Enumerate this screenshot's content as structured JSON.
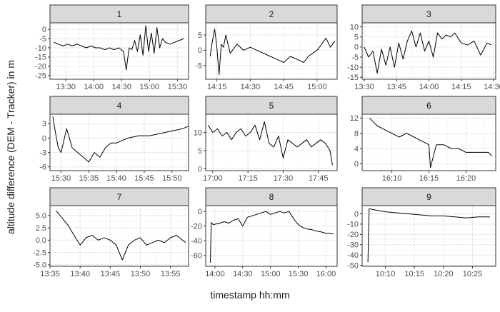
{
  "chart_data": {
    "type": "line",
    "layout": "facet grid 3x3",
    "xlabel": "timestamp hh:mm",
    "ylabel": "altitude difference (DEM - Tracker) in m",
    "grid": true,
    "legend": "none",
    "colors": {
      "line": "#000000",
      "strip": "#d9d9d9",
      "panel_border": "#333333",
      "grid_major": "#ebebeb",
      "grid_minor": "#f5f5f5"
    },
    "panels": [
      {
        "label": "1",
        "xlim": [
          "13:13",
          "15:42"
        ],
        "ylim": [
          -27,
          3.5
        ],
        "xticks": [
          "13:30",
          "14:00",
          "14:30",
          "15:00",
          "15:30"
        ],
        "yticks": [
          0,
          -5,
          -10,
          -15,
          -20,
          -25
        ],
        "x": [
          "13:17",
          "13:22",
          "13:27",
          "13:32",
          "13:37",
          "13:42",
          "13:47",
          "13:52",
          "13:57",
          "14:02",
          "14:07",
          "14:12",
          "14:17",
          "14:22",
          "14:27",
          "14:32",
          "14:35",
          "14:38",
          "14:41",
          "14:44",
          "14:47",
          "14:50",
          "14:53",
          "14:56",
          "14:59",
          "15:02",
          "15:05",
          "15:08",
          "15:11",
          "15:14",
          "15:17",
          "15:22",
          "15:27",
          "15:32",
          "15:37"
        ],
        "y": [
          -7,
          -8,
          -9,
          -8,
          -9,
          -8,
          -9,
          -10,
          -9,
          -10,
          -10,
          -11,
          -10,
          -11,
          -10,
          -12,
          -22,
          -10,
          -11,
          -6,
          -12,
          -3,
          -14,
          2,
          -12,
          -2,
          -13,
          1,
          -10,
          -5,
          -7,
          -8,
          -7,
          -6,
          -5
        ]
      },
      {
        "label": "2",
        "xlim": [
          "14:10",
          "15:09"
        ],
        "ylim": [
          -9.5,
          9
        ],
        "xticks": [
          "14:15",
          "14:30",
          "14:45",
          "15:00"
        ],
        "yticks": [
          5,
          0,
          -5
        ],
        "x": [
          "14:12",
          "14:13",
          "14:14",
          "14:15",
          "14:16",
          "14:17",
          "14:18",
          "14:19",
          "14:21",
          "14:24",
          "14:27",
          "14:30",
          "14:33",
          "14:36",
          "14:39",
          "14:42",
          "14:45",
          "14:48",
          "14:51",
          "14:54",
          "14:56",
          "14:58",
          "15:00",
          "15:02",
          "15:04",
          "15:06",
          "15:08"
        ],
        "y": [
          -2,
          3,
          7,
          1,
          -8,
          2,
          1,
          5,
          -1,
          2,
          0,
          1,
          0,
          -1,
          -2,
          -3,
          -4,
          -2,
          -3,
          -4,
          -2,
          -1,
          0,
          2,
          4,
          1,
          3
        ]
      },
      {
        "label": "3",
        "xlim": [
          "13:29",
          "14:31"
        ],
        "ylim": [
          -16,
          12
        ],
        "xticks": [
          "13:30",
          "13:45",
          "14:00",
          "14:15",
          "14:30"
        ],
        "yticks": [
          10,
          5,
          0,
          -5,
          -10,
          -15
        ],
        "x": [
          "13:30",
          "13:32",
          "13:34",
          "13:36",
          "13:38",
          "13:40",
          "13:42",
          "13:44",
          "13:46",
          "13:48",
          "13:50",
          "13:52",
          "13:54",
          "13:56",
          "13:58",
          "14:00",
          "14:02",
          "14:04",
          "14:06",
          "14:08",
          "14:10",
          "14:12",
          "14:15",
          "14:18",
          "14:21",
          "14:24",
          "14:27",
          "14:29"
        ],
        "y": [
          0,
          -5,
          -2,
          -13,
          -1,
          -9,
          0,
          -10,
          2,
          -6,
          3,
          8,
          0,
          7,
          -2,
          3,
          -5,
          7,
          4,
          6,
          5,
          7,
          2,
          1,
          3,
          -4,
          2,
          1
        ]
      },
      {
        "label": "4",
        "xlim": [
          "15:28",
          "15:53"
        ],
        "ylim": [
          -6.8,
          5
        ],
        "xticks": [
          "15:30",
          "15:35",
          "15:40",
          "15:45",
          "15:50"
        ],
        "yticks": [
          3,
          0,
          -3,
          -6
        ],
        "x": [
          "15:28.5",
          "15:29",
          "15:29.5",
          "15:30",
          "15:31",
          "15:32",
          "15:33",
          "15:34",
          "15:35",
          "15:36",
          "15:37",
          "15:38",
          "15:39",
          "15:40",
          "15:42",
          "15:44",
          "15:46",
          "15:48",
          "15:50",
          "15:52",
          "15:53"
        ],
        "y": [
          4.5,
          1,
          -2,
          -3,
          2,
          -2,
          -3,
          -4,
          -5,
          -3,
          -4,
          -2,
          -1,
          -1,
          0,
          0.5,
          0.5,
          1,
          1.5,
          2,
          2.5
        ]
      },
      {
        "label": "5",
        "xlim": [
          "16:57",
          "17:53"
        ],
        "ylim": [
          -0.5,
          15
        ],
        "xticks": [
          "17:00",
          "17:15",
          "17:30",
          "17:45"
        ],
        "yticks": [
          10,
          5,
          0
        ],
        "x": [
          "16:58",
          "17:00",
          "17:02",
          "17:04",
          "17:06",
          "17:08",
          "17:10",
          "17:12",
          "17:14",
          "17:16",
          "17:18",
          "17:20",
          "17:22",
          "17:24",
          "17:26",
          "17:28",
          "17:30",
          "17:32",
          "17:34",
          "17:36",
          "17:38",
          "17:40",
          "17:42",
          "17:44",
          "17:46",
          "17:48",
          "17:50",
          "17:51"
        ],
        "y": [
          12,
          10,
          11,
          9,
          10,
          8,
          10,
          11,
          9,
          10,
          12,
          8,
          13,
          7,
          6,
          9,
          3,
          8,
          7,
          6,
          7,
          8,
          6,
          7,
          8,
          7,
          5,
          1
        ]
      },
      {
        "label": "6",
        "xlim": [
          "16:06",
          "16:24"
        ],
        "ylim": [
          -1.8,
          13
        ],
        "xticks": [
          "16:10",
          "16:15",
          "16:20"
        ],
        "yticks": [
          12,
          8,
          4,
          0
        ],
        "x": [
          "16:07",
          "16:07.5",
          "16:08",
          "16:09",
          "16:10",
          "16:11",
          "16:12",
          "16:13",
          "16:14",
          "16:15",
          "16:15.2",
          "16:16",
          "16:17",
          "16:18",
          "16:19",
          "16:20",
          "16:21",
          "16:22",
          "16:23",
          "16:23.5"
        ],
        "y": [
          12,
          11,
          10,
          9,
          8,
          7,
          8,
          7,
          6,
          5,
          -1,
          5,
          5,
          4,
          4,
          3,
          3,
          3,
          3,
          2
        ]
      },
      {
        "label": "7",
        "xlim": [
          "13:35",
          "13:58"
        ],
        "ylim": [
          -5.3,
          7
        ],
        "xticks": [
          "13:35",
          "13:40",
          "13:45",
          "13:50",
          "13:55"
        ],
        "yticks": [
          5.0,
          2.5,
          0.0,
          -2.5,
          -5.0
        ],
        "x": [
          "13:36",
          "13:37",
          "13:38",
          "13:39",
          "13:40",
          "13:41",
          "13:42",
          "13:43",
          "13:44",
          "13:45",
          "13:46",
          "13:47",
          "13:48",
          "13:49",
          "13:50",
          "13:51",
          "13:52",
          "13:53",
          "13:54",
          "13:55",
          "13:56",
          "13:57",
          "13:57.5"
        ],
        "y": [
          6,
          4.5,
          3,
          1,
          -1,
          0.5,
          1,
          0,
          0.5,
          0,
          -1,
          -4,
          -1,
          0,
          0.5,
          -1,
          -0.5,
          0,
          -0.5,
          0.5,
          1,
          0,
          -0.5
        ]
      },
      {
        "label": "8",
        "xlim": [
          "13:50",
          "16:12"
        ],
        "ylim": [
          -75,
          8
        ],
        "xticks": [
          "14:00",
          "14:30",
          "15:00",
          "15:30",
          "16:00"
        ],
        "yticks": [
          0,
          -20,
          -40,
          -60
        ],
        "x": [
          "13:55",
          "13:56",
          "13:58",
          "14:05",
          "14:10",
          "14:15",
          "14:20",
          "14:25",
          "14:30",
          "14:35",
          "14:40",
          "14:45",
          "14:50",
          "14:55",
          "15:00",
          "15:05",
          "15:10",
          "15:15",
          "15:20",
          "15:25",
          "15:30",
          "15:35",
          "15:40",
          "15:45",
          "15:50",
          "15:55",
          "16:00",
          "16:05",
          "16:08"
        ],
        "y": [
          -70,
          -15,
          -18,
          -16,
          -14,
          -16,
          -12,
          -10,
          -20,
          -8,
          -6,
          -4,
          -2,
          0,
          -4,
          -2,
          0,
          -2,
          0,
          -10,
          -18,
          -22,
          -24,
          -25,
          -27,
          -28,
          -30,
          -30,
          -31
        ]
      },
      {
        "label": "9",
        "xlim": [
          "10:06",
          "10:29"
        ],
        "ylim": [
          -51,
          8
        ],
        "xticks": [
          "10:10",
          "10:15",
          "10:20",
          "10:25"
        ],
        "yticks": [
          0,
          -10,
          -20,
          -30,
          -40,
          -50
        ],
        "x": [
          "10:07",
          "10:07.2",
          "10:08",
          "10:10",
          "10:12",
          "10:14",
          "10:16",
          "10:18",
          "10:20",
          "10:22",
          "10:24",
          "10:26",
          "10:28"
        ],
        "y": [
          -47,
          5,
          4,
          2,
          1,
          0,
          -1,
          -2,
          -2,
          -3,
          -4,
          -3,
          -3
        ]
      }
    ]
  }
}
